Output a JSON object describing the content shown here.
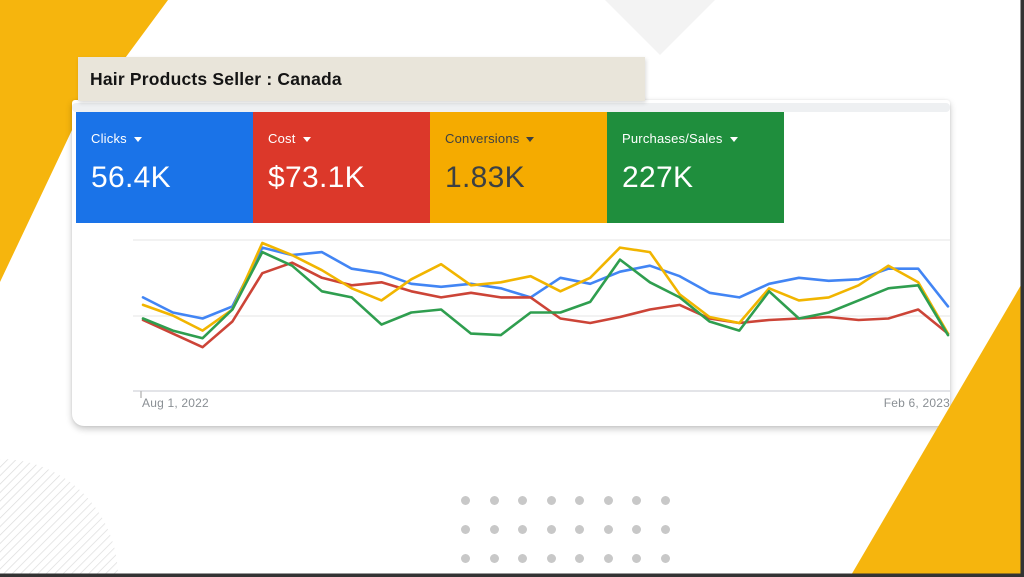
{
  "title_banner": "Hair Products Seller : Canada",
  "metrics": [
    {
      "label": "Clicks",
      "value": "56.4K",
      "bg": "#1a73e8",
      "fg": "#ffffff"
    },
    {
      "label": "Cost",
      "value": "$73.1K",
      "bg": "#dc382a",
      "fg": "#ffffff"
    },
    {
      "label": "Conversions",
      "value": "1.83K",
      "bg": "#f5ab00",
      "fg": "#3c4043"
    },
    {
      "label": "Purchases/Sales",
      "value": "227K",
      "bg": "#1f8e3d",
      "fg": "#ffffff"
    }
  ],
  "chart_data": {
    "type": "line",
    "title": "",
    "xlabel": "",
    "ylabel": "",
    "x_axis": {
      "start_label": "Aug 1, 2022",
      "end_label": "Feb 6, 2023"
    },
    "ylim": [
      0,
      100
    ],
    "grid": "two horizontal gridlines plus baseline, no y tick labels",
    "legend": "none (series colors match scorecards)",
    "series": [
      {
        "name": "Clicks",
        "color": "#4285f4",
        "values": [
          62,
          52,
          48,
          56,
          95,
          90,
          92,
          81,
          78,
          71,
          69,
          71,
          68,
          62,
          75,
          71,
          79,
          83,
          76,
          65,
          62,
          71,
          75,
          73,
          74,
          81,
          81,
          56
        ]
      },
      {
        "name": "Cost",
        "color": "#cc4437",
        "values": [
          47,
          38,
          29,
          46,
          78,
          85,
          75,
          70,
          72,
          66,
          62,
          65,
          62,
          62,
          48,
          45,
          49,
          54,
          57,
          48,
          45,
          47,
          48,
          49,
          47,
          48,
          54,
          38
        ]
      },
      {
        "name": "Conversions",
        "color": "#f1b500",
        "values": [
          57,
          50,
          40,
          54,
          98,
          90,
          80,
          68,
          60,
          74,
          84,
          70,
          72,
          76,
          66,
          75,
          95,
          92,
          64,
          49,
          45,
          68,
          60,
          62,
          70,
          83,
          72,
          38
        ]
      },
      {
        "name": "Purchases/Sales",
        "color": "#2f9e4f",
        "values": [
          48,
          40,
          35,
          54,
          92,
          83,
          66,
          62,
          44,
          52,
          54,
          38,
          37,
          52,
          52,
          59,
          87,
          72,
          62,
          46,
          40,
          66,
          48,
          52,
          60,
          68,
          70,
          37
        ]
      }
    ]
  },
  "decor": {
    "accent_gold": "#f6b50d",
    "frame_border": "#333333",
    "dots": {
      "rows": 3,
      "cols": 8,
      "color": "#c8c8c8"
    }
  }
}
